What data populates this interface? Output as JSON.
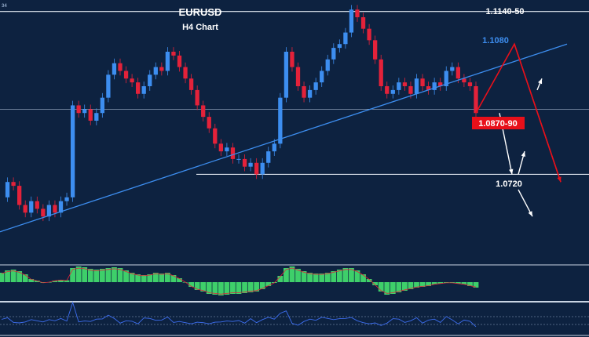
{
  "chart_data": {
    "type": "candlestick",
    "title": "EURUSD",
    "subtitle": "H4 Chart",
    "price_levels": [
      {
        "label": "1.1140-50",
        "value": 1.1145,
        "color": "#ffffff"
      },
      {
        "label": "1.1080",
        "value": 1.108,
        "color": "#3d8ef0"
      },
      {
        "label": "1.0870-90",
        "value": 1.088,
        "color": "#e8101a"
      },
      {
        "label": "1.0720",
        "value": 1.072,
        "color": "#ffffff"
      }
    ],
    "horizontal_lines": [
      1.1145,
      1.089,
      1.072
    ],
    "close_series": [
      1.066,
      1.07,
      1.069,
      1.064,
      1.062,
      1.065,
      1.063,
      1.061,
      1.064,
      1.062,
      1.065,
      1.066,
      1.09,
      1.088,
      1.089,
      1.086,
      1.088,
      1.092,
      1.098,
      1.101,
      1.099,
      1.097,
      1.096,
      1.093,
      1.095,
      1.098,
      1.1,
      1.099,
      1.104,
      1.103,
      1.1,
      1.097,
      1.094,
      1.09,
      1.087,
      1.084,
      1.08,
      1.078,
      1.079,
      1.076,
      1.076,
      1.074,
      1.075,
      1.072,
      1.075,
      1.078,
      1.08,
      1.092,
      1.104,
      1.1,
      1.095,
      1.092,
      1.094,
      1.096,
      1.099,
      1.102,
      1.105,
      1.106,
      1.109,
      1.115,
      1.113,
      1.11,
      1.107,
      1.102,
      1.095,
      1.093,
      1.094,
      1.096,
      1.095,
      1.093,
      1.097,
      1.095,
      1.094,
      1.096,
      1.095,
      1.099,
      1.1,
      1.097,
      1.096,
      1.095,
      1.088
    ],
    "trendline": {
      "from_price": 1.057,
      "to_price": 1.106
    },
    "projection_red": [
      1.088,
      1.106,
      1.07
    ],
    "projection_white": [
      [
        1.088,
        1.072
      ],
      [
        1.072,
        1.078
      ],
      [
        1.068,
        1.061
      ],
      [
        1.094,
        1.097
      ]
    ],
    "ylim": [
      1.05,
      1.1175
    ],
    "macd_histogram": [
      0.6,
      0.75,
      0.8,
      0.7,
      0.5,
      0.2,
      0.1,
      -0.05,
      0,
      0.1,
      0.15,
      0.12,
      0.9,
      1.0,
      0.95,
      0.85,
      0.8,
      0.85,
      0.9,
      0.95,
      0.9,
      0.75,
      0.6,
      0.5,
      0.45,
      0.5,
      0.6,
      0.55,
      0.6,
      0.45,
      0.25,
      0,
      -0.3,
      -0.5,
      -0.6,
      -0.75,
      -0.8,
      -0.85,
      -0.8,
      -0.75,
      -0.75,
      -0.7,
      -0.65,
      -0.6,
      -0.45,
      -0.25,
      -0.05,
      0.4,
      0.9,
      1.0,
      0.85,
      0.7,
      0.6,
      0.55,
      0.55,
      0.6,
      0.7,
      0.8,
      0.9,
      0.9,
      0.75,
      0.5,
      0.2,
      -0.2,
      -0.6,
      -0.8,
      -0.75,
      -0.65,
      -0.55,
      -0.45,
      -0.35,
      -0.3,
      -0.25,
      -0.15,
      -0.1,
      -0.05,
      -0.05,
      -0.1,
      -0.15,
      -0.25,
      -0.35
    ],
    "grid": false
  },
  "corner_label": "34"
}
